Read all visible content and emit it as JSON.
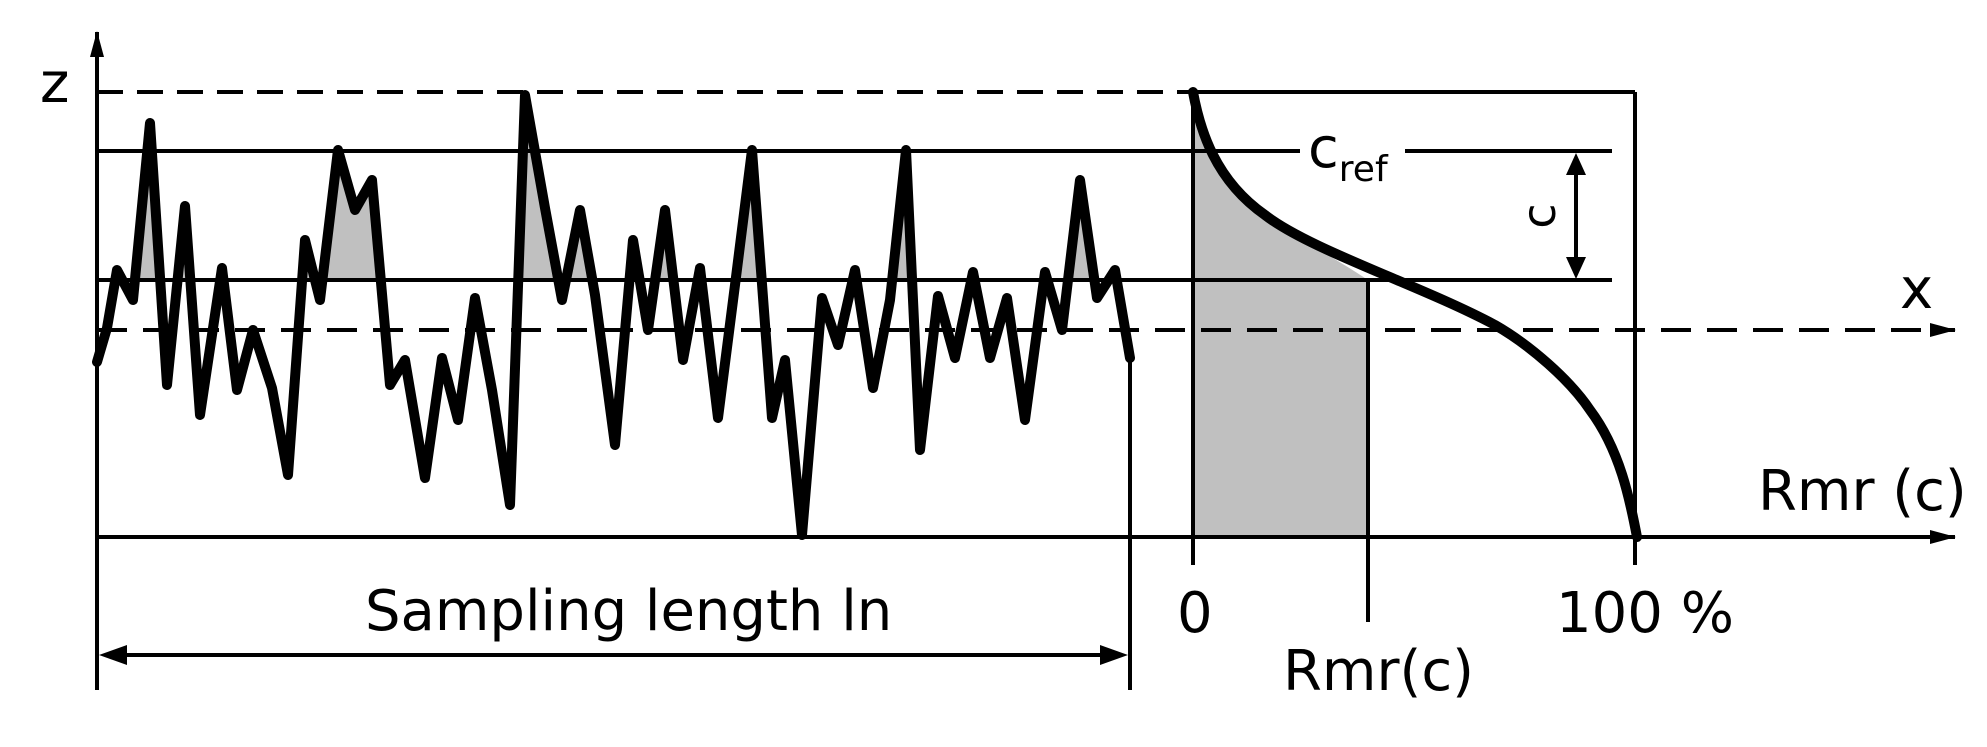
{
  "diagram": {
    "axes": {
      "z_label": "z",
      "x_label": "x",
      "rmr_axis_label": "Rmr (c)"
    },
    "profile": {
      "sampling_length_label": "Sampling length ln"
    },
    "bearing_chart": {
      "tick_0": "0",
      "tick_100": "100 %",
      "rmr_c_label": "Rmr(c)",
      "c_ref_main": "c",
      "c_ref_sub": "ref",
      "c_label": "c"
    },
    "colors": {
      "line": "#000000",
      "fill": "#c0c0c0",
      "background": "#ffffff"
    }
  }
}
